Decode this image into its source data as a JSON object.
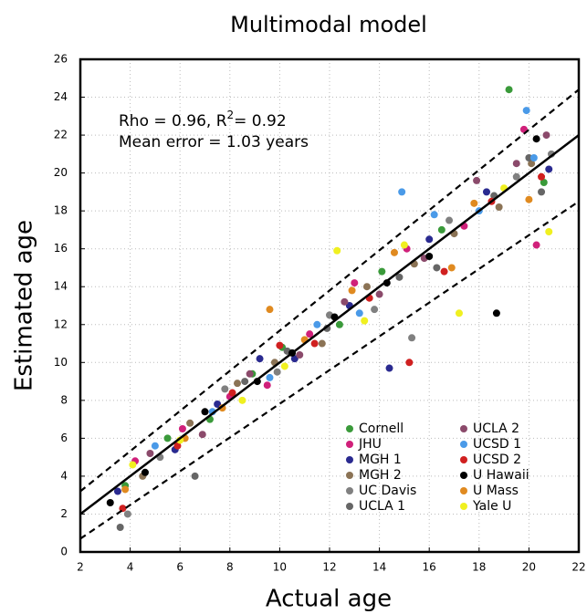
{
  "chart_data": {
    "type": "scatter",
    "title": "Multimodal model",
    "x_label": "Actual age",
    "y_label": "Estimated age",
    "annotation": {
      "line1": [
        "Rho = 0.96, R",
        "2",
        "= 0.92"
      ],
      "line2": "Mean error = 1.03 years"
    },
    "xlim": [
      2,
      22
    ],
    "ylim": [
      0,
      26
    ],
    "xticks": [
      2,
      4,
      6,
      8,
      10,
      12,
      14,
      16,
      18,
      20,
      22
    ],
    "yticks": [
      0,
      2,
      4,
      6,
      8,
      10,
      12,
      14,
      16,
      18,
      20,
      22,
      24,
      26
    ],
    "grid": true,
    "legend": "lower right",
    "lines": [
      {
        "style": "solid",
        "x": [
          2,
          22
        ],
        "y": [
          2,
          22
        ]
      },
      {
        "style": "dashed",
        "x": [
          2,
          22
        ],
        "y": [
          3.2,
          24.4
        ]
      },
      {
        "style": "dashed",
        "x": [
          2,
          22
        ],
        "y": [
          0.7,
          18.5
        ]
      }
    ],
    "series": [
      {
        "name": "Cornell",
        "color": "#3a9a3a",
        "x": [
          3.8,
          5.5,
          7.2,
          8.9,
          10.1,
          12.4,
          14.1,
          16.5,
          19.2,
          20.6
        ],
        "y": [
          3.5,
          6.0,
          7.0,
          9.4,
          10.8,
          12.0,
          14.8,
          17.0,
          24.4,
          19.5
        ]
      },
      {
        "name": "JHU",
        "color": "#d0207a",
        "x": [
          4.2,
          6.1,
          8.0,
          9.5,
          11.2,
          13.0,
          15.1,
          17.4,
          19.8,
          20.3
        ],
        "y": [
          4.8,
          6.5,
          8.2,
          8.8,
          11.5,
          14.2,
          16.0,
          17.2,
          22.3,
          16.2
        ]
      },
      {
        "name": "MGH 1",
        "color": "#2a2a90",
        "x": [
          3.5,
          5.8,
          7.5,
          9.2,
          10.6,
          12.8,
          14.4,
          16.0,
          18.3,
          20.8
        ],
        "y": [
          3.2,
          5.4,
          7.8,
          10.2,
          10.2,
          13.0,
          9.7,
          16.5,
          19.0,
          20.2
        ]
      },
      {
        "name": "MGH 2",
        "color": "#8b7355",
        "x": [
          4.5,
          6.4,
          8.3,
          9.8,
          11.7,
          13.5,
          15.4,
          17.0,
          18.8,
          20.1
        ],
        "y": [
          4.0,
          6.8,
          8.9,
          10.0,
          11.0,
          14.0,
          15.2,
          16.8,
          18.2,
          20.5
        ]
      },
      {
        "name": "UC Davis",
        "color": "#808080",
        "x": [
          3.9,
          5.2,
          7.8,
          9.9,
          12.0,
          13.8,
          15.3,
          16.8,
          19.5,
          20.9
        ],
        "y": [
          2.0,
          5.0,
          8.6,
          9.5,
          12.5,
          12.8,
          11.3,
          17.5,
          19.8,
          21.0
        ]
      },
      {
        "name": "UCLA 1",
        "color": "#666666",
        "x": [
          3.6,
          6.6,
          8.6,
          10.3,
          11.9,
          14.8,
          16.3,
          18.6,
          20.0,
          20.5
        ],
        "y": [
          1.3,
          4.0,
          9.0,
          10.6,
          11.8,
          14.5,
          15.0,
          18.8,
          20.8,
          19.0
        ]
      },
      {
        "name": "UCLA 2",
        "color": "#8b4a6b",
        "x": [
          4.8,
          6.9,
          8.8,
          10.8,
          12.6,
          14.0,
          15.8,
          17.9,
          19.5,
          20.7
        ],
        "y": [
          5.2,
          6.2,
          9.4,
          10.4,
          13.2,
          13.6,
          15.5,
          19.6,
          20.5,
          22.0
        ]
      },
      {
        "name": "UCSD 1",
        "color": "#4a9ae8",
        "x": [
          5.0,
          7.3,
          9.6,
          11.5,
          13.2,
          14.9,
          16.2,
          18.0,
          19.9,
          20.2
        ],
        "y": [
          5.6,
          7.4,
          9.2,
          12.0,
          12.6,
          19.0,
          17.8,
          18.0,
          23.3,
          20.8
        ]
      },
      {
        "name": "UCSD 2",
        "color": "#d02020",
        "x": [
          3.7,
          5.9,
          8.1,
          10.0,
          11.4,
          13.6,
          15.2,
          16.6,
          18.5,
          20.5
        ],
        "y": [
          2.3,
          5.6,
          8.4,
          10.9,
          11.0,
          13.4,
          10.0,
          14.8,
          18.5,
          19.8
        ]
      },
      {
        "name": "U Hawaii",
        "color": "#000000",
        "x": [
          3.2,
          4.6,
          7.0,
          9.1,
          10.5,
          12.2,
          14.3,
          16.0,
          18.7,
          20.3
        ],
        "y": [
          2.6,
          4.2,
          7.4,
          9.0,
          10.5,
          12.4,
          14.2,
          15.6,
          12.6,
          21.8
        ]
      },
      {
        "name": "U Mass",
        "color": "#e08a20",
        "x": [
          3.8,
          6.2,
          7.7,
          9.6,
          11.0,
          12.9,
          14.6,
          16.9,
          17.8,
          20.0
        ],
        "y": [
          3.3,
          6.0,
          7.6,
          12.8,
          11.2,
          13.8,
          15.8,
          15.0,
          18.4,
          18.6
        ]
      },
      {
        "name": "Yale U",
        "color": "#f0f020",
        "x": [
          4.1,
          6.0,
          8.5,
          10.2,
          12.3,
          13.4,
          15.0,
          17.2,
          19.0,
          20.8
        ],
        "y": [
          4.6,
          5.9,
          8.0,
          9.8,
          15.9,
          12.2,
          16.2,
          12.6,
          19.2,
          16.9
        ]
      }
    ]
  }
}
